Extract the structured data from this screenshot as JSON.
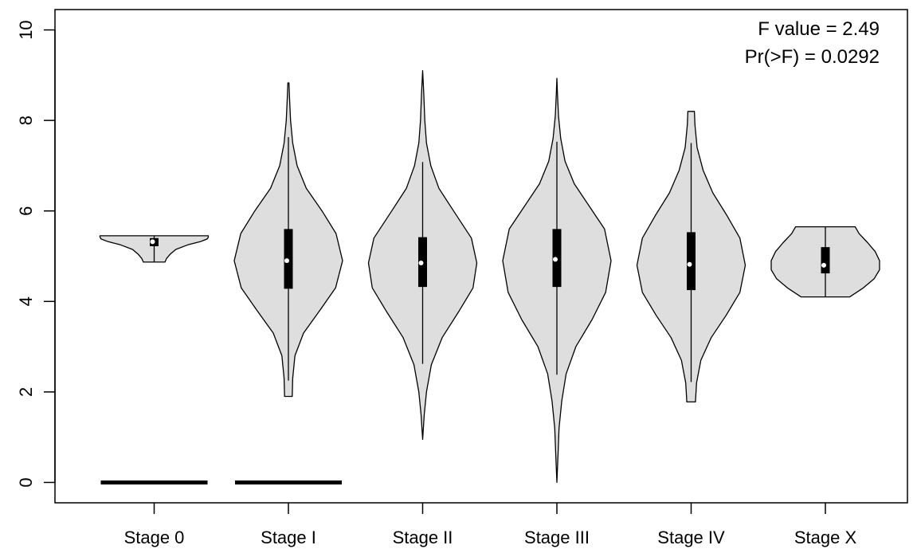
{
  "chart_data": {
    "type": "violin",
    "title": "",
    "xlabel": "",
    "ylabel": "",
    "ylim": [
      -0.45,
      10.45
    ],
    "yticks": [
      0,
      2,
      4,
      6,
      8,
      10
    ],
    "ytick_labels": [
      "0",
      "2",
      "4",
      "6",
      "8",
      "10"
    ],
    "categories": [
      "Stage 0",
      "Stage I",
      "Stage II",
      "Stage III",
      "Stage IV",
      "Stage X"
    ],
    "violins": [
      {
        "min": 4.87,
        "max": 5.45,
        "q1": 5.22,
        "q3": 5.4,
        "median": 5.32,
        "whisker_low": 4.87,
        "whisker_high": 5.45,
        "density": [
          [
            4.87,
            0.2
          ],
          [
            4.95,
            0.23
          ],
          [
            5.05,
            0.3
          ],
          [
            5.15,
            0.4
          ],
          [
            5.25,
            0.62
          ],
          [
            5.32,
            0.85
          ],
          [
            5.38,
            0.98
          ],
          [
            5.42,
            1.0
          ],
          [
            5.45,
            1.0
          ]
        ]
      },
      {
        "min": 1.9,
        "max": 8.83,
        "q1": 4.28,
        "q3": 5.6,
        "median": 4.9,
        "whisker_low": 2.25,
        "whisker_high": 7.63,
        "density": [
          [
            1.9,
            0.07
          ],
          [
            2.3,
            0.08
          ],
          [
            2.8,
            0.12
          ],
          [
            3.3,
            0.28
          ],
          [
            3.8,
            0.58
          ],
          [
            4.3,
            0.87
          ],
          [
            4.9,
            1.0
          ],
          [
            5.5,
            0.88
          ],
          [
            6.0,
            0.62
          ],
          [
            6.5,
            0.33
          ],
          [
            7.0,
            0.16
          ],
          [
            7.5,
            0.08
          ],
          [
            8.0,
            0.04
          ],
          [
            8.5,
            0.02
          ],
          [
            8.83,
            0.01
          ]
        ]
      },
      {
        "min": 0.95,
        "max": 9.1,
        "q1": 4.32,
        "q3": 5.42,
        "median": 4.85,
        "whisker_low": 2.62,
        "whisker_high": 7.08,
        "density": [
          [
            0.95,
            0.0
          ],
          [
            1.5,
            0.03
          ],
          [
            2.0,
            0.07
          ],
          [
            2.6,
            0.16
          ],
          [
            3.2,
            0.36
          ],
          [
            3.8,
            0.68
          ],
          [
            4.3,
            0.93
          ],
          [
            4.85,
            1.0
          ],
          [
            5.4,
            0.9
          ],
          [
            6.0,
            0.57
          ],
          [
            6.5,
            0.3
          ],
          [
            7.0,
            0.15
          ],
          [
            7.5,
            0.07
          ],
          [
            8.0,
            0.04
          ],
          [
            8.6,
            0.02
          ],
          [
            9.1,
            0.0
          ]
        ]
      },
      {
        "min": 0.0,
        "max": 8.93,
        "q1": 4.32,
        "q3": 5.6,
        "median": 4.93,
        "whisker_low": 2.38,
        "whisker_high": 7.53,
        "density": [
          [
            0.0,
            0.0
          ],
          [
            0.6,
            0.02
          ],
          [
            1.2,
            0.04
          ],
          [
            1.8,
            0.09
          ],
          [
            2.4,
            0.17
          ],
          [
            3.0,
            0.35
          ],
          [
            3.6,
            0.65
          ],
          [
            4.2,
            0.9
          ],
          [
            4.9,
            1.0
          ],
          [
            5.6,
            0.88
          ],
          [
            6.1,
            0.6
          ],
          [
            6.6,
            0.32
          ],
          [
            7.1,
            0.15
          ],
          [
            7.6,
            0.07
          ],
          [
            8.1,
            0.03
          ],
          [
            8.6,
            0.01
          ],
          [
            8.93,
            0.0
          ]
        ]
      },
      {
        "min": 1.78,
        "max": 8.2,
        "q1": 4.25,
        "q3": 5.53,
        "median": 4.82,
        "whisker_low": 2.22,
        "whisker_high": 7.5,
        "density": [
          [
            1.78,
            0.08
          ],
          [
            2.2,
            0.1
          ],
          [
            2.7,
            0.18
          ],
          [
            3.2,
            0.37
          ],
          [
            3.7,
            0.65
          ],
          [
            4.2,
            0.9
          ],
          [
            4.8,
            1.0
          ],
          [
            5.4,
            0.9
          ],
          [
            5.9,
            0.66
          ],
          [
            6.4,
            0.4
          ],
          [
            6.9,
            0.22
          ],
          [
            7.4,
            0.11
          ],
          [
            7.9,
            0.07
          ],
          [
            8.2,
            0.06
          ]
        ]
      },
      {
        "min": 4.1,
        "max": 5.65,
        "q1": 4.62,
        "q3": 5.2,
        "median": 4.8,
        "whisker_low": 4.1,
        "whisker_high": 5.65,
        "density": [
          [
            4.1,
            0.45
          ],
          [
            4.3,
            0.7
          ],
          [
            4.5,
            0.9
          ],
          [
            4.7,
            1.0
          ],
          [
            4.9,
            1.0
          ],
          [
            5.1,
            0.92
          ],
          [
            5.3,
            0.78
          ],
          [
            5.5,
            0.62
          ],
          [
            5.65,
            0.55
          ]
        ]
      }
    ],
    "baseline_segments": [
      {
        "category": "Stage 0",
        "y": 0
      },
      {
        "category": "Stage I",
        "y": 0
      }
    ],
    "annotations": [
      "F value = 2.49",
      "Pr(>F) = 0.0292"
    ],
    "colors": {
      "fill": "#dedede",
      "line": "#000000",
      "median_point": "#ffffff"
    }
  }
}
